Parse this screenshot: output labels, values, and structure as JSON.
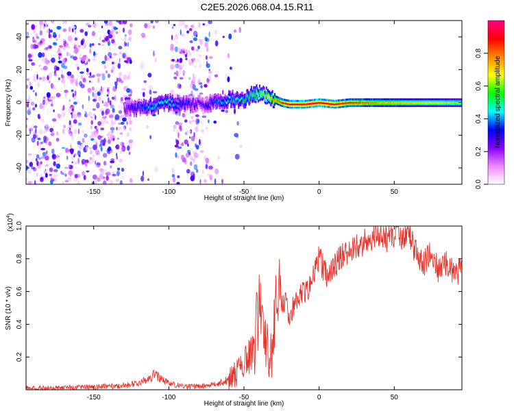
{
  "title": "C2E5.2026.068.04.15.R11",
  "chart_data": [
    {
      "type": "heatmap",
      "name": "spectrogram",
      "xlabel": "Height of straight line (km)",
      "ylabel": "Frequency (Hz)",
      "xlim": [
        -195,
        95
      ],
      "ylim": [
        -50,
        50
      ],
      "x_ticks": [
        -150,
        -100,
        -50,
        0,
        50
      ],
      "y_ticks": [
        -40,
        -20,
        0,
        20,
        40
      ],
      "colorbar": {
        "label": "Normalized spectral amplitude",
        "range": [
          0,
          1
        ],
        "ticks": [
          "0.0",
          "0.2",
          "0.4",
          "0.6",
          "0.8"
        ],
        "ticks_values": [
          0,
          0.2,
          0.4,
          0.6,
          0.8
        ],
        "colors": [
          "#ffffff",
          "#ee88ff",
          "#8800ff",
          "#0000ff",
          "#00ffff",
          "#00ff00",
          "#ffff00",
          "#ff8800",
          "#ff0000",
          "#ff0088"
        ]
      },
      "ridge": {
        "x": [
          -130,
          -120,
          -110,
          -100,
          -90,
          -80,
          -70,
          -60,
          -50,
          -45,
          -40,
          -35,
          -30,
          -25,
          -20,
          -10,
          0,
          10,
          20,
          40,
          60,
          80,
          95
        ],
        "y": [
          -4,
          -3,
          -2,
          0,
          -1,
          -1,
          0,
          2,
          2,
          5,
          6,
          4,
          2,
          0,
          -1,
          -1,
          0,
          -1,
          0,
          0,
          0,
          0,
          0
        ],
        "amplitude": [
          0.25,
          0.35,
          0.45,
          0.45,
          0.35,
          0.25,
          0.35,
          0.45,
          0.5,
          0.55,
          0.6,
          0.65,
          0.75,
          0.85,
          0.9,
          0.95,
          0.95,
          0.9,
          0.85,
          0.75,
          0.7,
          0.65,
          0.6
        ]
      },
      "noise_regions": [
        {
          "x": [
            -195,
            -125
          ],
          "density": 1.0
        },
        {
          "x": [
            -118,
            -108
          ],
          "density": 0.3
        },
        {
          "x": [
            -98,
            -72
          ],
          "density": 0.85
        },
        {
          "x": [
            -72,
            -50
          ],
          "density": 0.12
        }
      ]
    },
    {
      "type": "line",
      "name": "snr",
      "xlabel": "Height of straight line (km)",
      "ylabel": "SNR (10 * v/v)",
      "y_scale_label": "(x10",
      "y_scale_exp": "4",
      "y_scale_close": ")",
      "xlim": [
        -195,
        95
      ],
      "ylim": [
        0,
        1.0
      ],
      "x_ticks": [
        -150,
        -100,
        -50,
        0,
        50
      ],
      "y_ticks": [
        0.2,
        0.4,
        0.6,
        0.8,
        1.0
      ],
      "y_tick_labels": [
        "0.2",
        "0.4",
        "0.6",
        "0.8",
        "1.0"
      ],
      "color": "#e8322a",
      "series": [
        {
          "x": [
            -195,
            -180,
            -160,
            -140,
            -125,
            -115,
            -110,
            -105,
            -100,
            -90,
            -80,
            -70,
            -60,
            -55,
            -50,
            -47,
            -45,
            -42,
            -40,
            -38,
            -35,
            -33,
            -30,
            -28,
            -25,
            -22,
            -20,
            -15,
            -10,
            -5,
            0,
            5,
            10,
            15,
            20,
            25,
            30,
            35,
            40,
            45,
            50,
            55,
            60,
            65,
            70,
            75,
            80,
            85,
            90,
            95
          ],
          "y": [
            0.01,
            0.01,
            0.015,
            0.02,
            0.03,
            0.06,
            0.09,
            0.07,
            0.04,
            0.02,
            0.02,
            0.03,
            0.06,
            0.1,
            0.15,
            0.2,
            0.25,
            0.4,
            0.62,
            0.35,
            0.3,
            0.15,
            0.4,
            0.7,
            0.5,
            0.55,
            0.45,
            0.55,
            0.6,
            0.65,
            0.8,
            0.7,
            0.75,
            0.82,
            0.85,
            0.88,
            0.9,
            0.93,
            0.95,
            0.92,
            0.95,
            0.93,
            0.95,
            0.82,
            0.78,
            0.85,
            0.72,
            0.78,
            0.7,
            0.75
          ]
        }
      ]
    }
  ]
}
